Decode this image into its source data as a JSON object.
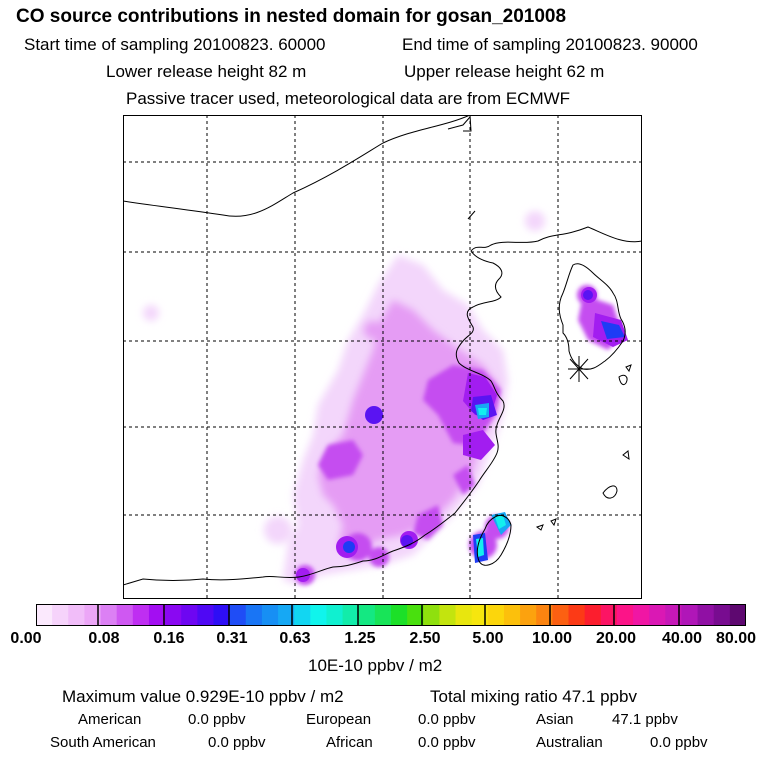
{
  "header": {
    "title": "CO  source contributions in nested domain for gosan_201008",
    "start_time": "Start time of sampling 20100823. 60000",
    "end_time": "End time of sampling 20100823. 90000",
    "lower_height": "Lower release height   82 m",
    "upper_height": "Upper release height   62 m",
    "tracer_note": "Passive tracer used, meteorological data are from ECMWF"
  },
  "map": {
    "receptor_marker": "gosan-receptor-star-icon",
    "plume_colors": [
      "#f3d6fb",
      "#e59cf4",
      "#c54df0",
      "#a21df0",
      "#5a14f2",
      "#1e3cf5",
      "#17a8f4",
      "#12f0ee"
    ]
  },
  "colorbar": {
    "tick_labels": [
      "0.00",
      "0.08",
      "0.16",
      "0.31",
      "0.63",
      "1.25",
      "2.50",
      "5.00",
      "10.00",
      "20.00",
      "40.00",
      "80.00"
    ],
    "colors": [
      "#fbe9fd",
      "#f6d3fb",
      "#f1bdf9",
      "#eca6f7",
      "#dc80f4",
      "#cf58f2",
      "#bf2ef2",
      "#a30ef2",
      "#8a08f2",
      "#6e06f2",
      "#4f08f4",
      "#2e0ef6",
      "#1f4df6",
      "#1975f5",
      "#178ff4",
      "#16a8f4",
      "#12d6f2",
      "#10f4ec",
      "#10f0d0",
      "#12ecaa",
      "#14e882",
      "#18e458",
      "#1ce028",
      "#49e00e",
      "#8fe00e",
      "#c3e40e",
      "#e8e60e",
      "#f6e60e",
      "#fcd60c",
      "#fcc00c",
      "#fca20e",
      "#fc8410",
      "#fc6012",
      "#fc3a16",
      "#fc1e2e",
      "#fc1464",
      "#fc1488",
      "#f016a4",
      "#da18b4",
      "#c618b8",
      "#b016b8",
      "#9010a4",
      "#780c90",
      "#5e0870"
    ],
    "units": "10E-10 ppbv / m2"
  },
  "summary": {
    "maximum": "Maximum value  0.929E-10 ppbv / m2",
    "total": "Total mixing ratio       47.1 ppbv",
    "american": "American",
    "american_value": "0.0 ppbv",
    "european": "European",
    "european_value": "0.0 ppbv",
    "asian": "Asian",
    "asian_value": "47.1 ppbv",
    "south_american": "South American",
    "south_american_value": "0.0 ppbv",
    "african": "African",
    "african_value": "0.0 ppbv",
    "australian": "Australian",
    "australian_value": "0.0 ppbv"
  }
}
